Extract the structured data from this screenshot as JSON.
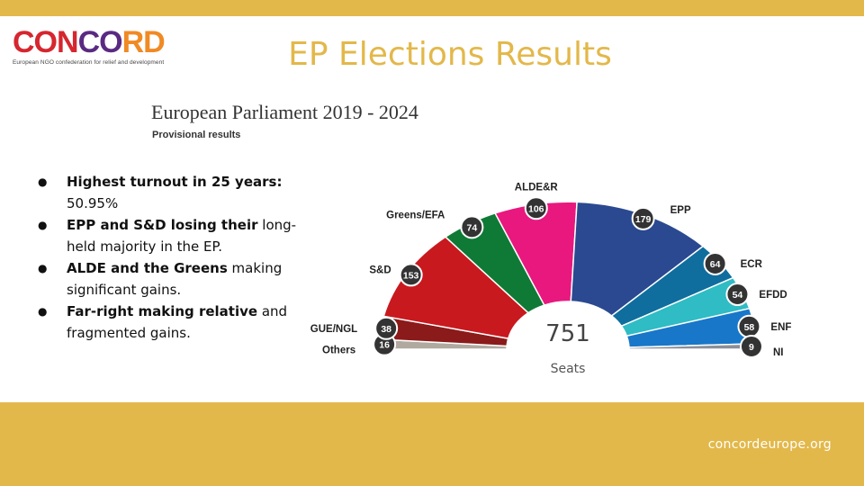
{
  "logo": {
    "word_parts": [
      "CON",
      "CO",
      "RD"
    ],
    "tagline": "European NGO confederation for relief and development"
  },
  "title": "EP Elections Results",
  "bullets": [
    {
      "strong": "Highest turnout in 25 years:",
      "rest": "50.95%"
    },
    {
      "strong": "EPP and S&D losing their",
      "rest": "long-held majority in the EP."
    },
    {
      "strong": "ALDE and the Greens",
      "rest": "making significant gains."
    },
    {
      "strong": "Far-right making relative",
      "rest": "and fragmented gains."
    }
  ],
  "footer": {
    "url": "concordeurope.org"
  },
  "chart_data": {
    "type": "pie",
    "title": "European Parliament 2019 - 2024",
    "subtitle": "Provisional results",
    "total": {
      "value": "751",
      "label": "Seats"
    },
    "segments": [
      {
        "name": "Others",
        "seats": 16,
        "color": "#b0a9a0"
      },
      {
        "name": "GUE/NGL",
        "seats": 38,
        "color": "#8b1a1a"
      },
      {
        "name": "S&D",
        "seats": 153,
        "color": "#c8191f"
      },
      {
        "name": "Greens/EFA",
        "seats": 74,
        "color": "#0f7a35"
      },
      {
        "name": "ALDE&R",
        "seats": 106,
        "color": "#e8187f"
      },
      {
        "name": "EPP",
        "seats": 179,
        "color": "#2a4990"
      },
      {
        "name": "ECR",
        "seats": 64,
        "color": "#0f6e9e"
      },
      {
        "name": "EFDD",
        "seats": 54,
        "color": "#2fbcc4"
      },
      {
        "name": "ENF",
        "seats": 58,
        "color": "#1877c9"
      },
      {
        "name": "NI",
        "seats": 9,
        "color": "#8a8f99"
      }
    ]
  }
}
